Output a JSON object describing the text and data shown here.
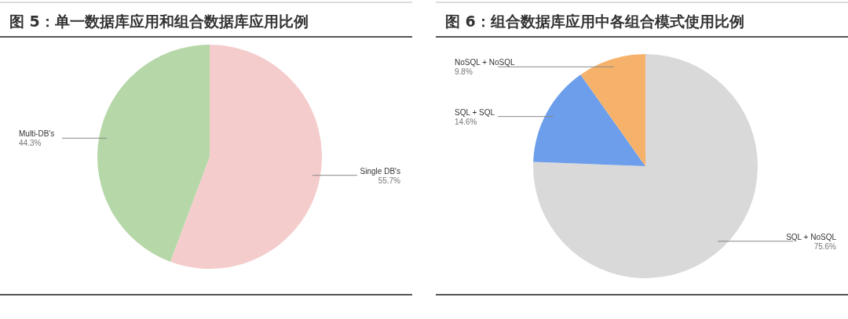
{
  "chart_data": [
    {
      "type": "pie",
      "title": "图 5：单一数据库应用和组合数据库应用比例",
      "categories": [
        "Single DB's",
        "Multi-DB's"
      ],
      "values": [
        55.7,
        44.3
      ],
      "colors": [
        "#f4cccc",
        "#b6d7a8"
      ],
      "value_labels": [
        "55.7%",
        "44.3%"
      ]
    },
    {
      "type": "pie",
      "title": "图 6：组合数据库应用中各组合模式使用比例",
      "categories": [
        "SQL + NoSQL",
        "SQL + SQL",
        "NoSQL + NoSQL"
      ],
      "values": [
        75.6,
        14.6,
        9.8
      ],
      "colors": [
        "#d9d9d9",
        "#6d9eeb",
        "#f6b26b"
      ],
      "value_labels": [
        "75.6%",
        "14.6%",
        "9.8%"
      ]
    }
  ]
}
